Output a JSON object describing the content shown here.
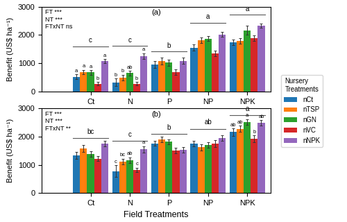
{
  "chart_data": [
    {
      "type": "bar",
      "title": "(a)",
      "categories": [
        "Ct",
        "N",
        "P",
        "NP",
        "NPK"
      ],
      "y_label": "Benefit (US$ ha⁻¹)",
      "annotations": [
        "FT ***\nNT ***\nFTxNT ns"
      ],
      "ylim": [
        0,
        3000
      ],
      "yticks": [
        0,
        1000,
        2000,
        3000
      ],
      "legend": "center left",
      "legend_title": "Nursery\nTreatments",
      "series": [
        {
          "name": "nCt",
          "values": [
            520,
            320,
            950,
            1550,
            1730
          ],
          "errors": [
            80,
            130,
            130,
            110,
            100
          ],
          "letters": [
            "a",
            "b",
            null,
            null,
            null
          ]
        },
        {
          "name": "nTSP",
          "values": [
            680,
            490,
            1080,
            1820,
            1780
          ],
          "errors": [
            80,
            100,
            120,
            100,
            100
          ],
          "letters": [
            "a",
            "b",
            null,
            null,
            null
          ]
        },
        {
          "name": "nGN",
          "values": [
            670,
            650,
            1020,
            1870,
            2160
          ],
          "errors": [
            80,
            80,
            110,
            80,
            160
          ],
          "letters": [
            "a",
            "ab",
            null,
            null,
            null
          ]
        },
        {
          "name": "nVC",
          "values": [
            270,
            270,
            680,
            1350,
            1880
          ],
          "errors": [
            60,
            60,
            100,
            100,
            100
          ],
          "letters": [
            "b",
            "b",
            null,
            null,
            null
          ]
        },
        {
          "name": "nNPK",
          "values": [
            1070,
            1250,
            1080,
            2020,
            2330
          ],
          "errors": [
            80,
            100,
            110,
            80,
            80
          ],
          "letters": [
            "a",
            "a",
            null,
            null,
            null
          ]
        }
      ],
      "group_letters": [
        "c",
        "c",
        "b",
        "a",
        "a"
      ],
      "group_letter_y": [
        1680,
        1700,
        1500,
        2520,
        2800
      ],
      "bracket_y": [
        1600,
        1620,
        1420,
        2430,
        2720
      ]
    },
    {
      "type": "bar",
      "title": "(b)",
      "categories": [
        "Ct",
        "N",
        "P",
        "NP",
        "NPK"
      ],
      "x_label": "Field Treatments",
      "y_label": "Benefit (US$ ha⁻¹)",
      "annotations": [
        "FT ***\nNT ***\nFTxNT **"
      ],
      "ylim": [
        0,
        3000
      ],
      "yticks": [
        0,
        1000,
        2000,
        3000
      ],
      "series": [
        {
          "name": "nCt",
          "values": [
            1340,
            780,
            1760,
            1760,
            2160
          ],
          "errors": [
            120,
            200,
            80,
            100,
            130
          ],
          "letters": [
            null,
            "c",
            null,
            null,
            "ab"
          ]
        },
        {
          "name": "nTSP",
          "values": [
            1590,
            1120,
            1900,
            1620,
            2280
          ],
          "errors": [
            120,
            100,
            100,
            120,
            100
          ],
          "letters": [
            null,
            "bc",
            null,
            null,
            "ab"
          ]
        },
        {
          "name": "nGN",
          "values": [
            1390,
            1170,
            1820,
            1700,
            2520
          ],
          "errors": [
            100,
            100,
            80,
            100,
            100
          ],
          "letters": [
            null,
            "ab",
            null,
            null,
            "a"
          ]
        },
        {
          "name": "nVC",
          "values": [
            1220,
            820,
            1500,
            1760,
            1920
          ],
          "errors": [
            80,
            80,
            100,
            120,
            120
          ],
          "letters": [
            null,
            "c",
            null,
            null,
            "b"
          ]
        },
        {
          "name": "nNPK",
          "values": [
            1760,
            1550,
            1540,
            1950,
            2480
          ],
          "errors": [
            100,
            110,
            100,
            100,
            100
          ],
          "letters": [
            null,
            "a",
            null,
            null,
            "ab"
          ]
        }
      ],
      "group_letters": [
        "bc",
        "c",
        "b",
        "ab",
        "a"
      ],
      "group_letter_y": [
        2050,
        1950,
        2200,
        2380,
        2850
      ],
      "bracket_y": [
        1960,
        1860,
        2100,
        2280,
        2760
      ]
    }
  ]
}
